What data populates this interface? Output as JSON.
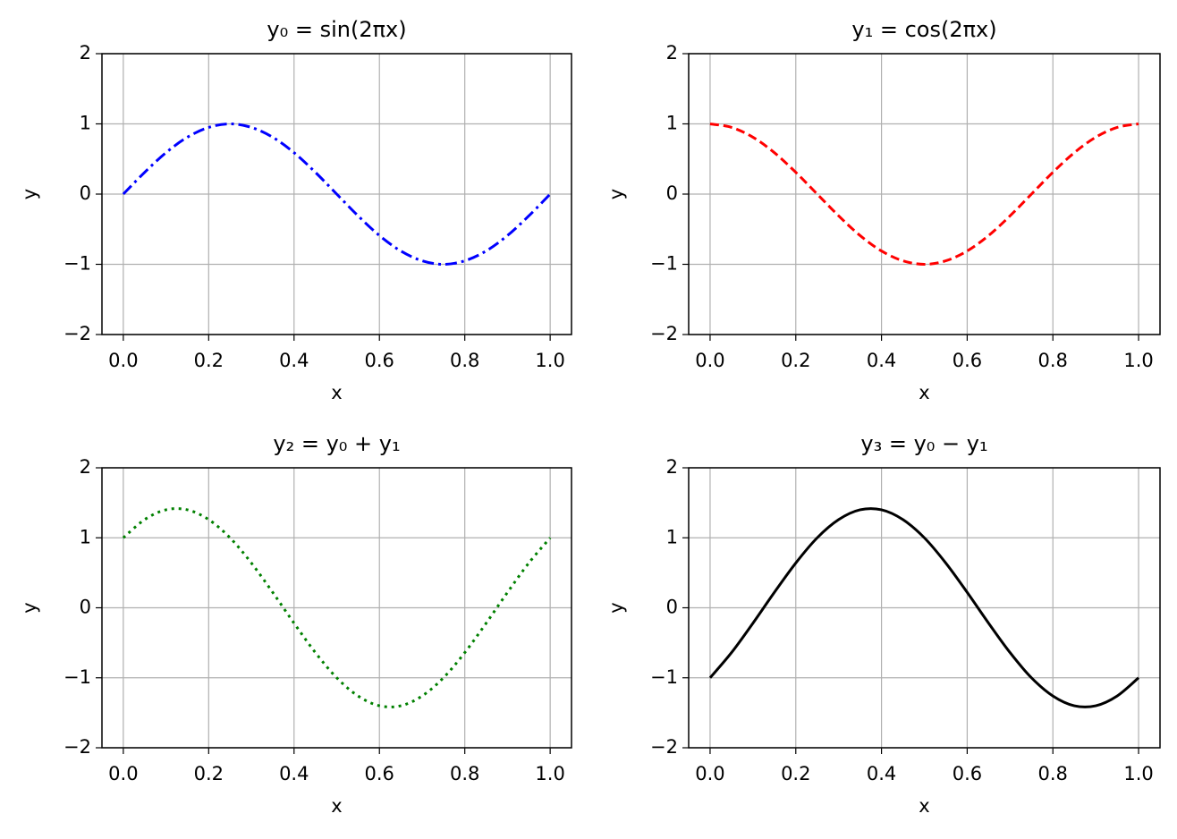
{
  "chart_data": [
    {
      "type": "line",
      "title": "y₀ = sin(2πx)",
      "x_label": "x",
      "y_label": "y",
      "color": "#0000ff",
      "linestyle": "dashdot",
      "grid": true,
      "x": [
        0,
        0.05,
        0.1,
        0.15,
        0.2,
        0.25,
        0.3,
        0.35,
        0.4,
        0.45,
        0.5,
        0.55,
        0.6,
        0.65,
        0.7,
        0.75,
        0.8,
        0.85,
        0.9,
        0.95,
        1
      ],
      "values": [
        0,
        0.31,
        0.59,
        0.81,
        0.95,
        1,
        0.95,
        0.81,
        0.59,
        0.31,
        0,
        -0.31,
        -0.59,
        -0.81,
        -0.95,
        -1,
        -0.95,
        -0.81,
        -0.59,
        -0.31,
        0
      ],
      "xlim": [
        -0.05,
        1.05
      ],
      "ylim": [
        -2,
        2
      ],
      "xticks": [
        {
          "value": 0,
          "label": "0.0"
        },
        0.2,
        0.4,
        0.6,
        0.8,
        {
          "value": 1,
          "label": "1.0"
        }
      ],
      "yticks": [
        {
          "value": -2,
          "label": "−2"
        },
        {
          "value": -1,
          "label": "−1"
        },
        0,
        1,
        2
      ]
    },
    {
      "type": "line",
      "title": "y₁ = cos(2πx)",
      "x_label": "x",
      "y_label": "y",
      "color": "#ff0000",
      "linestyle": "dashed",
      "grid": true,
      "x": [
        0,
        0.05,
        0.1,
        0.15,
        0.2,
        0.25,
        0.3,
        0.35,
        0.4,
        0.45,
        0.5,
        0.55,
        0.6,
        0.65,
        0.7,
        0.75,
        0.8,
        0.85,
        0.9,
        0.95,
        1
      ],
      "values": [
        1,
        0.95,
        0.81,
        0.59,
        0.31,
        0,
        -0.31,
        -0.59,
        -0.81,
        -0.95,
        -1,
        -0.95,
        -0.81,
        -0.59,
        -0.31,
        0,
        0.31,
        0.59,
        0.81,
        0.95,
        1
      ],
      "xlim": [
        -0.05,
        1.05
      ],
      "ylim": [
        -2,
        2
      ],
      "xticks": [
        {
          "value": 0,
          "label": "0.0"
        },
        0.2,
        0.4,
        0.6,
        0.8,
        {
          "value": 1,
          "label": "1.0"
        }
      ],
      "yticks": [
        {
          "value": -2,
          "label": "−2"
        },
        {
          "value": -1,
          "label": "−1"
        },
        0,
        1,
        2
      ]
    },
    {
      "type": "line",
      "title": "y₂ = y₀ + y₁",
      "x_label": "x",
      "y_label": "y",
      "color": "#008000",
      "linestyle": "dotted",
      "grid": true,
      "x": [
        0,
        0.05,
        0.1,
        0.15,
        0.2,
        0.25,
        0.3,
        0.35,
        0.4,
        0.45,
        0.5,
        0.55,
        0.6,
        0.65,
        0.7,
        0.75,
        0.8,
        0.85,
        0.9,
        0.95,
        1
      ],
      "values": [
        1,
        1.26,
        1.4,
        1.4,
        1.26,
        1,
        0.64,
        0.22,
        -0.22,
        -0.64,
        -1,
        -1.26,
        -1.4,
        -1.4,
        -1.26,
        -1,
        -0.64,
        -0.22,
        0.22,
        0.64,
        1
      ],
      "xlim": [
        -0.05,
        1.05
      ],
      "ylim": [
        -2,
        2
      ],
      "xticks": [
        {
          "value": 0,
          "label": "0.0"
        },
        0.2,
        0.4,
        0.6,
        0.8,
        {
          "value": 1,
          "label": "1.0"
        }
      ],
      "yticks": [
        {
          "value": -2,
          "label": "−2"
        },
        {
          "value": -1,
          "label": "−1"
        },
        0,
        1,
        2
      ]
    },
    {
      "type": "line",
      "title": "y₃ = y₀ − y₁",
      "x_label": "x",
      "y_label": "y",
      "color": "#000000",
      "linestyle": "solid",
      "grid": true,
      "x": [
        0,
        0.05,
        0.1,
        0.15,
        0.2,
        0.25,
        0.3,
        0.35,
        0.4,
        0.45,
        0.5,
        0.55,
        0.6,
        0.65,
        0.7,
        0.75,
        0.8,
        0.85,
        0.9,
        0.95,
        1
      ],
      "values": [
        -1,
        -0.64,
        -0.22,
        0.22,
        0.64,
        1,
        1.26,
        1.4,
        1.4,
        1.26,
        1,
        0.64,
        0.22,
        -0.22,
        -0.64,
        -1,
        -1.26,
        -1.4,
        -1.4,
        -1.26,
        -1
      ],
      "xlim": [
        -0.05,
        1.05
      ],
      "ylim": [
        -2,
        2
      ],
      "xticks": [
        {
          "value": 0,
          "label": "0.0"
        },
        0.2,
        0.4,
        0.6,
        0.8,
        {
          "value": 1,
          "label": "1.0"
        }
      ],
      "yticks": [
        {
          "value": -2,
          "label": "−2"
        },
        {
          "value": -1,
          "label": "−1"
        },
        0,
        1,
        2
      ]
    }
  ]
}
